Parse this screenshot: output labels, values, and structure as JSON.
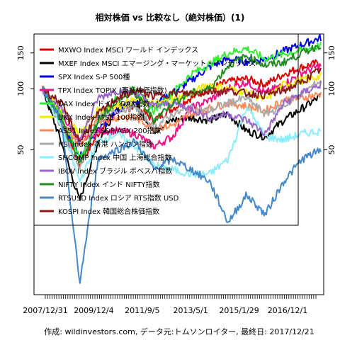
{
  "chart_data": {
    "type": "line",
    "title": "相対株価 vs 比較なし（絶対株価）(1)",
    "footer": "作成: wildinvestors.com, データ元:トムソンロイター, 最終日: 2017/12/21",
    "x_tick_labels": [
      "2007/12/31",
      "2009/12/4",
      "2011/9/5",
      "2013/5/1",
      "2015/1/29",
      "2016/12/1"
    ],
    "x_range": [
      "2007-12-31",
      "2017-12-21"
    ],
    "y_ticks": [
      50,
      100,
      150
    ],
    "y_axis_scale": "log",
    "ylim": [
      10,
      180
    ],
    "legend_position": "top-left",
    "series": [
      {
        "name": "MXWO Index MSCI ワールド インデックス",
        "color": "#dd0000",
        "values": [
          100,
          72,
          42,
          60,
          78,
          82,
          70,
          80,
          90,
          100,
          108,
          112,
          105,
          118,
          128,
          135
        ]
      },
      {
        "name": "MXEF Index MSCI エマージング・マーケット・インデックス",
        "color": "#000000",
        "values": [
          100,
          55,
          28,
          55,
          80,
          85,
          62,
          70,
          72,
          70,
          75,
          62,
          58,
          70,
          80,
          92
        ]
      },
      {
        "name": "SPX Index S-P 500種",
        "color": "#0000ee",
        "values": [
          100,
          70,
          46,
          62,
          78,
          87,
          83,
          95,
          110,
          128,
          140,
          136,
          140,
          153,
          165,
          178
        ]
      },
      {
        "name": "TPX Index TOPIX (東証株価指数)",
        "color": "#ee1188",
        "values": [
          100,
          75,
          55,
          62,
          62,
          60,
          52,
          58,
          80,
          88,
          100,
          108,
          95,
          105,
          120,
          130
        ]
      },
      {
        "name": "DAX Index ドイツ DAX指数",
        "color": "#33ee33",
        "values": [
          100,
          75,
          45,
          70,
          90,
          100,
          78,
          95,
          118,
          132,
          150,
          158,
          140,
          148,
          155,
          163
        ]
      },
      {
        "name": "UKX Index FTSE 100指数",
        "color": "#eeee00",
        "values": [
          100,
          80,
          60,
          78,
          82,
          88,
          84,
          88,
          95,
          105,
          100,
          96,
          88,
          105,
          110,
          115
        ]
      },
      {
        "name": "AS51 Index S&P/ASX 200指数",
        "color": "#ff8855",
        "values": [
          100,
          70,
          52,
          70,
          72,
          72,
          64,
          66,
          75,
          80,
          85,
          82,
          78,
          88,
          90,
          94
        ]
      },
      {
        "name": "HSI Index 香港 ハンセン指数",
        "color": "#aaaaaa",
        "values": [
          100,
          65,
          40,
          72,
          78,
          82,
          64,
          75,
          80,
          78,
          85,
          90,
          75,
          82,
          95,
          110
        ]
      },
      {
        "name": "SHCOMP Index 中国 上海総合指数",
        "color": "#88eeff",
        "values": [
          100,
          65,
          35,
          55,
          60,
          52,
          42,
          40,
          38,
          38,
          45,
          82,
          58,
          56,
          60,
          62
        ]
      },
      {
        "name": "IBOV Index ブラジル ボベスパ指数",
        "color": "#9966cc",
        "values": [
          100,
          80,
          55,
          90,
          98,
          95,
          82,
          85,
          80,
          72,
          75,
          70,
          60,
          85,
          95,
          105
        ]
      },
      {
        "name": "NIFTY Index インド NIFTY指数",
        "color": "#228b22",
        "values": [
          100,
          70,
          42,
          70,
          88,
          95,
          70,
          85,
          95,
          100,
          130,
          145,
          130,
          135,
          150,
          165
        ]
      },
      {
        "name": "RTSUSD Index ロシア RTS指数 USD",
        "color": "#4488cc",
        "values": [
          100,
          70,
          11,
          45,
          50,
          55,
          40,
          45,
          40,
          35,
          22,
          30,
          24,
          35,
          45,
          50
        ]
      },
      {
        "name": "KOSPI Index 韓国総合株価指数",
        "color": "#8b1a1a",
        "values": [
          100,
          85,
          55,
          75,
          90,
          98,
          92,
          95,
          95,
          97,
          98,
          95,
          93,
          98,
          108,
          125
        ]
      }
    ]
  }
}
